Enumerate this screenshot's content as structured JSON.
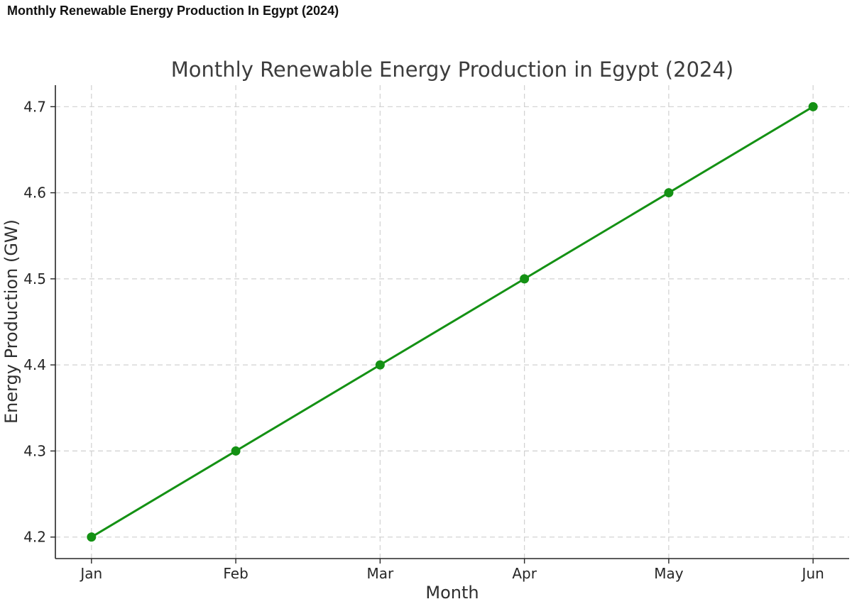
{
  "header": {
    "title": "Monthly Renewable Energy Production In Egypt (2024)"
  },
  "chart_data": {
    "type": "line",
    "title": "Monthly Renewable Energy Production in Egypt (2024)",
    "xlabel": "Month",
    "ylabel": "Energy Production (GW)",
    "categories": [
      "Jan",
      "Feb",
      "Mar",
      "Apr",
      "May",
      "Jun"
    ],
    "values": [
      4.2,
      4.3,
      4.4,
      4.5,
      4.6,
      4.7
    ],
    "ytick_labels": [
      "4.2",
      "4.3",
      "4.4",
      "4.5",
      "4.6",
      "4.7"
    ],
    "yticks": [
      4.2,
      4.3,
      4.4,
      4.5,
      4.6,
      4.7
    ],
    "ylim": [
      4.175,
      4.725
    ],
    "x_margin": 0.25,
    "grid": true,
    "grid_style": "dashed",
    "legend": null,
    "marker": "circle",
    "colors": {
      "line": "#149114",
      "marker": "#149114",
      "grid": "#d0d0d0",
      "axis": "#262626",
      "tick_text": "#262626",
      "title_text": "#3c3c3c",
      "label_text": "#2e2e2e",
      "background": "#ffffff"
    }
  }
}
